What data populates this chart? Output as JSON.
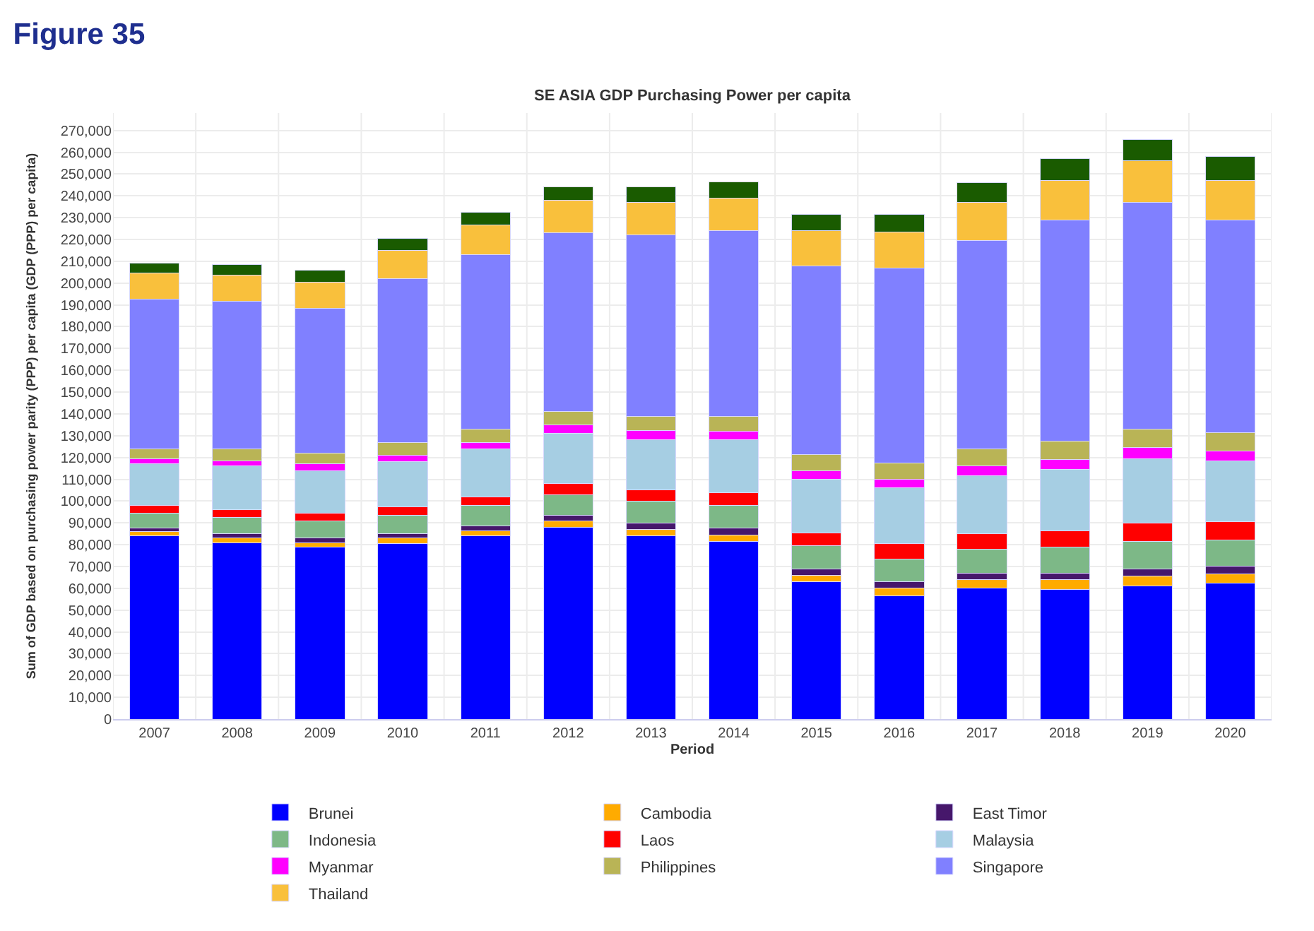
{
  "chart_data": {
    "type": "bar",
    "stacked": true,
    "title": "Figure 35",
    "subtitle": "SE ASIA GDP Purchasing Power per capita",
    "xlabel": "Period",
    "ylabel": "Sum of GDP based on purchasing power parity (PPP) per capita (GDP (PPP) per capita)",
    "categories": [
      "2007",
      "2008",
      "2009",
      "2010",
      "2011",
      "2012",
      "2013",
      "2014",
      "2015",
      "2016",
      "2017",
      "2018",
      "2019",
      "2020"
    ],
    "series": [
      {
        "name": "Brunei",
        "color": "#0000ff",
        "values": [
          84000,
          81000,
          79000,
          80500,
          84000,
          88000,
          84000,
          81500,
          63000,
          56500,
          60000,
          59500,
          61000,
          62500
        ]
      },
      {
        "name": "Cambodia",
        "color": "#ffab00",
        "values": [
          2000,
          2000,
          2000,
          2500,
          2500,
          3000,
          3000,
          3000,
          3000,
          3500,
          4000,
          4500,
          4500,
          4000
        ]
      },
      {
        "name": "East Timor",
        "color": "#46176b",
        "values": [
          1500,
          2000,
          2000,
          2000,
          2000,
          2500,
          3000,
          3000,
          3000,
          3000,
          3000,
          3000,
          3500,
          3500
        ]
      },
      {
        "name": "Indonesia",
        "color": "#7db887",
        "values": [
          7000,
          7500,
          8000,
          8500,
          9500,
          9500,
          10000,
          10500,
          10500,
          10500,
          11000,
          12000,
          12500,
          12000
        ]
      },
      {
        "name": "Laos",
        "color": "#ff0000",
        "values": [
          3500,
          3500,
          3500,
          4000,
          4000,
          5000,
          5000,
          6000,
          6000,
          7000,
          7000,
          7500,
          8500,
          8500
        ]
      },
      {
        "name": "Malaysia",
        "color": "#a6cee3",
        "values": [
          19000,
          20000,
          19500,
          20500,
          22000,
          23000,
          23000,
          24000,
          24500,
          25500,
          26500,
          28000,
          29500,
          28000
        ]
      },
      {
        "name": "Myanmar",
        "color": "#ff00ff",
        "values": [
          2500,
          2500,
          3000,
          3000,
          3000,
          4000,
          4500,
          4000,
          4000,
          4000,
          4500,
          4500,
          5000,
          4500
        ]
      },
      {
        "name": "Philippines",
        "color": "#b9b456",
        "values": [
          4500,
          5500,
          5000,
          6000,
          6000,
          6000,
          6500,
          7000,
          7500,
          7500,
          8000,
          8500,
          8500,
          8500
        ]
      },
      {
        "name": "Singapore",
        "color": "#8080ff",
        "values": [
          68500,
          67500,
          66500,
          75000,
          80000,
          82000,
          83000,
          85000,
          86500,
          89500,
          95500,
          101500,
          104000,
          97500
        ]
      },
      {
        "name": "Thailand",
        "color": "#f9c03c",
        "values": [
          12000,
          12000,
          12000,
          13000,
          13500,
          15000,
          15000,
          15000,
          16000,
          16500,
          17500,
          18000,
          19000,
          18000
        ]
      },
      {
        "color": "#1a5b00",
        "values": [
          4500,
          5000,
          5500,
          5500,
          6000,
          6000,
          7000,
          7500,
          7500,
          8000,
          9000,
          10000,
          10000,
          11000
        ]
      }
    ],
    "ylim": [
      0,
      278000
    ],
    "yticks": [
      {
        "value": 0,
        "label": "0"
      },
      {
        "value": 10000,
        "label": "10,000"
      },
      {
        "value": 20000,
        "label": "20,000"
      },
      {
        "value": 30000,
        "label": "30,000"
      },
      {
        "value": 40000,
        "label": "40,000"
      },
      {
        "value": 50000,
        "label": "50,000"
      },
      {
        "value": 60000,
        "label": "60,000"
      },
      {
        "value": 70000,
        "label": "70,000"
      },
      {
        "value": 80000,
        "label": "80,000"
      },
      {
        "value": 90000,
        "label": "90,000"
      },
      {
        "value": 100000,
        "label": "100,000"
      },
      {
        "value": 110000,
        "label": "110,000"
      },
      {
        "value": 120000,
        "label": "120,000"
      },
      {
        "value": 130000,
        "label": "130,000"
      },
      {
        "value": 140000,
        "label": "140,000"
      },
      {
        "value": 150000,
        "label": "150,000"
      },
      {
        "value": 160000,
        "label": "160,000"
      },
      {
        "value": 170000,
        "label": "170,000"
      },
      {
        "value": 180000,
        "label": "180,000"
      },
      {
        "value": 190000,
        "label": "190,000"
      },
      {
        "value": 200000,
        "label": "200,000"
      },
      {
        "value": 210000,
        "label": "210,000"
      },
      {
        "value": 220000,
        "label": "220,000"
      },
      {
        "value": 230000,
        "label": "230,000"
      },
      {
        "value": 240000,
        "label": "240,000"
      },
      {
        "value": 250000,
        "label": "250,000"
      },
      {
        "value": 260000,
        "label": "260,000"
      },
      {
        "value": 270000,
        "label": "270,000"
      }
    ],
    "grid": true,
    "legend": "bottom"
  }
}
